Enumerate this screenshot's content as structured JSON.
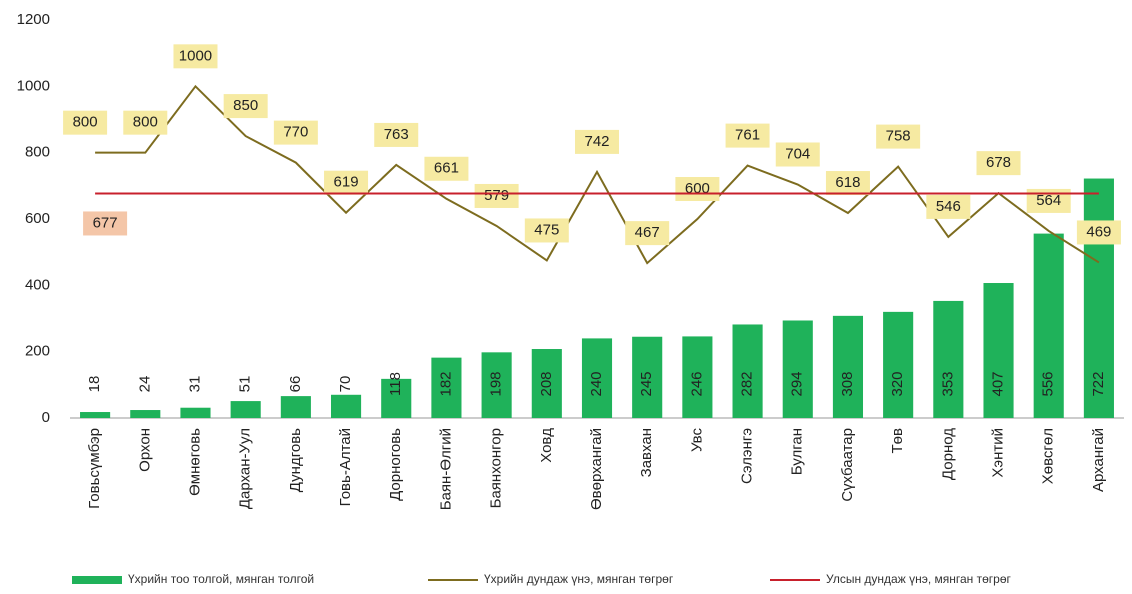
{
  "chart_data": {
    "type": "combo",
    "categories": [
      "Говьсүмбэр",
      "Орхон",
      "Өмнөговь",
      "Дархан-Уул",
      "Дундговь",
      "Говь-Алтай",
      "Дорноговь",
      "Баян-Өлгий",
      "Баянхонгор",
      "Ховд",
      "Өвөрхангай",
      "Завхан",
      "Увс",
      "Сэлэнгэ",
      "Булган",
      "Сүхбаатар",
      "Төв",
      "Дорнод",
      "Хэнтий",
      "Хөвсгөл",
      "Архангай"
    ],
    "series": [
      {
        "name": "Үхрийн тоо толгой, мянган толгой",
        "type": "bar",
        "color": "#1fb25a",
        "values": [
          18,
          24,
          31,
          51,
          66,
          70,
          118,
          182,
          198,
          208,
          240,
          245,
          246,
          282,
          294,
          308,
          320,
          353,
          407,
          556,
          722
        ]
      },
      {
        "name": "Үхрийн дундаж үнэ, мянган төгрөг",
        "type": "line",
        "color": "#7d6c1f",
        "values": [
          800,
          800,
          1000,
          850,
          770,
          619,
          763,
          661,
          579,
          475,
          742,
          467,
          600,
          761,
          704,
          618,
          758,
          546,
          678,
          564,
          469
        ]
      },
      {
        "name": "Улсын дундаж үнэ, мянган төгрөг",
        "type": "hline",
        "color": "#c8202c",
        "value": 677
      }
    ],
    "ylim": [
      0,
      1200
    ],
    "yticks": [
      0,
      200,
      400,
      600,
      800,
      1000,
      1200
    ],
    "grid": false,
    "legend": "bottom"
  }
}
